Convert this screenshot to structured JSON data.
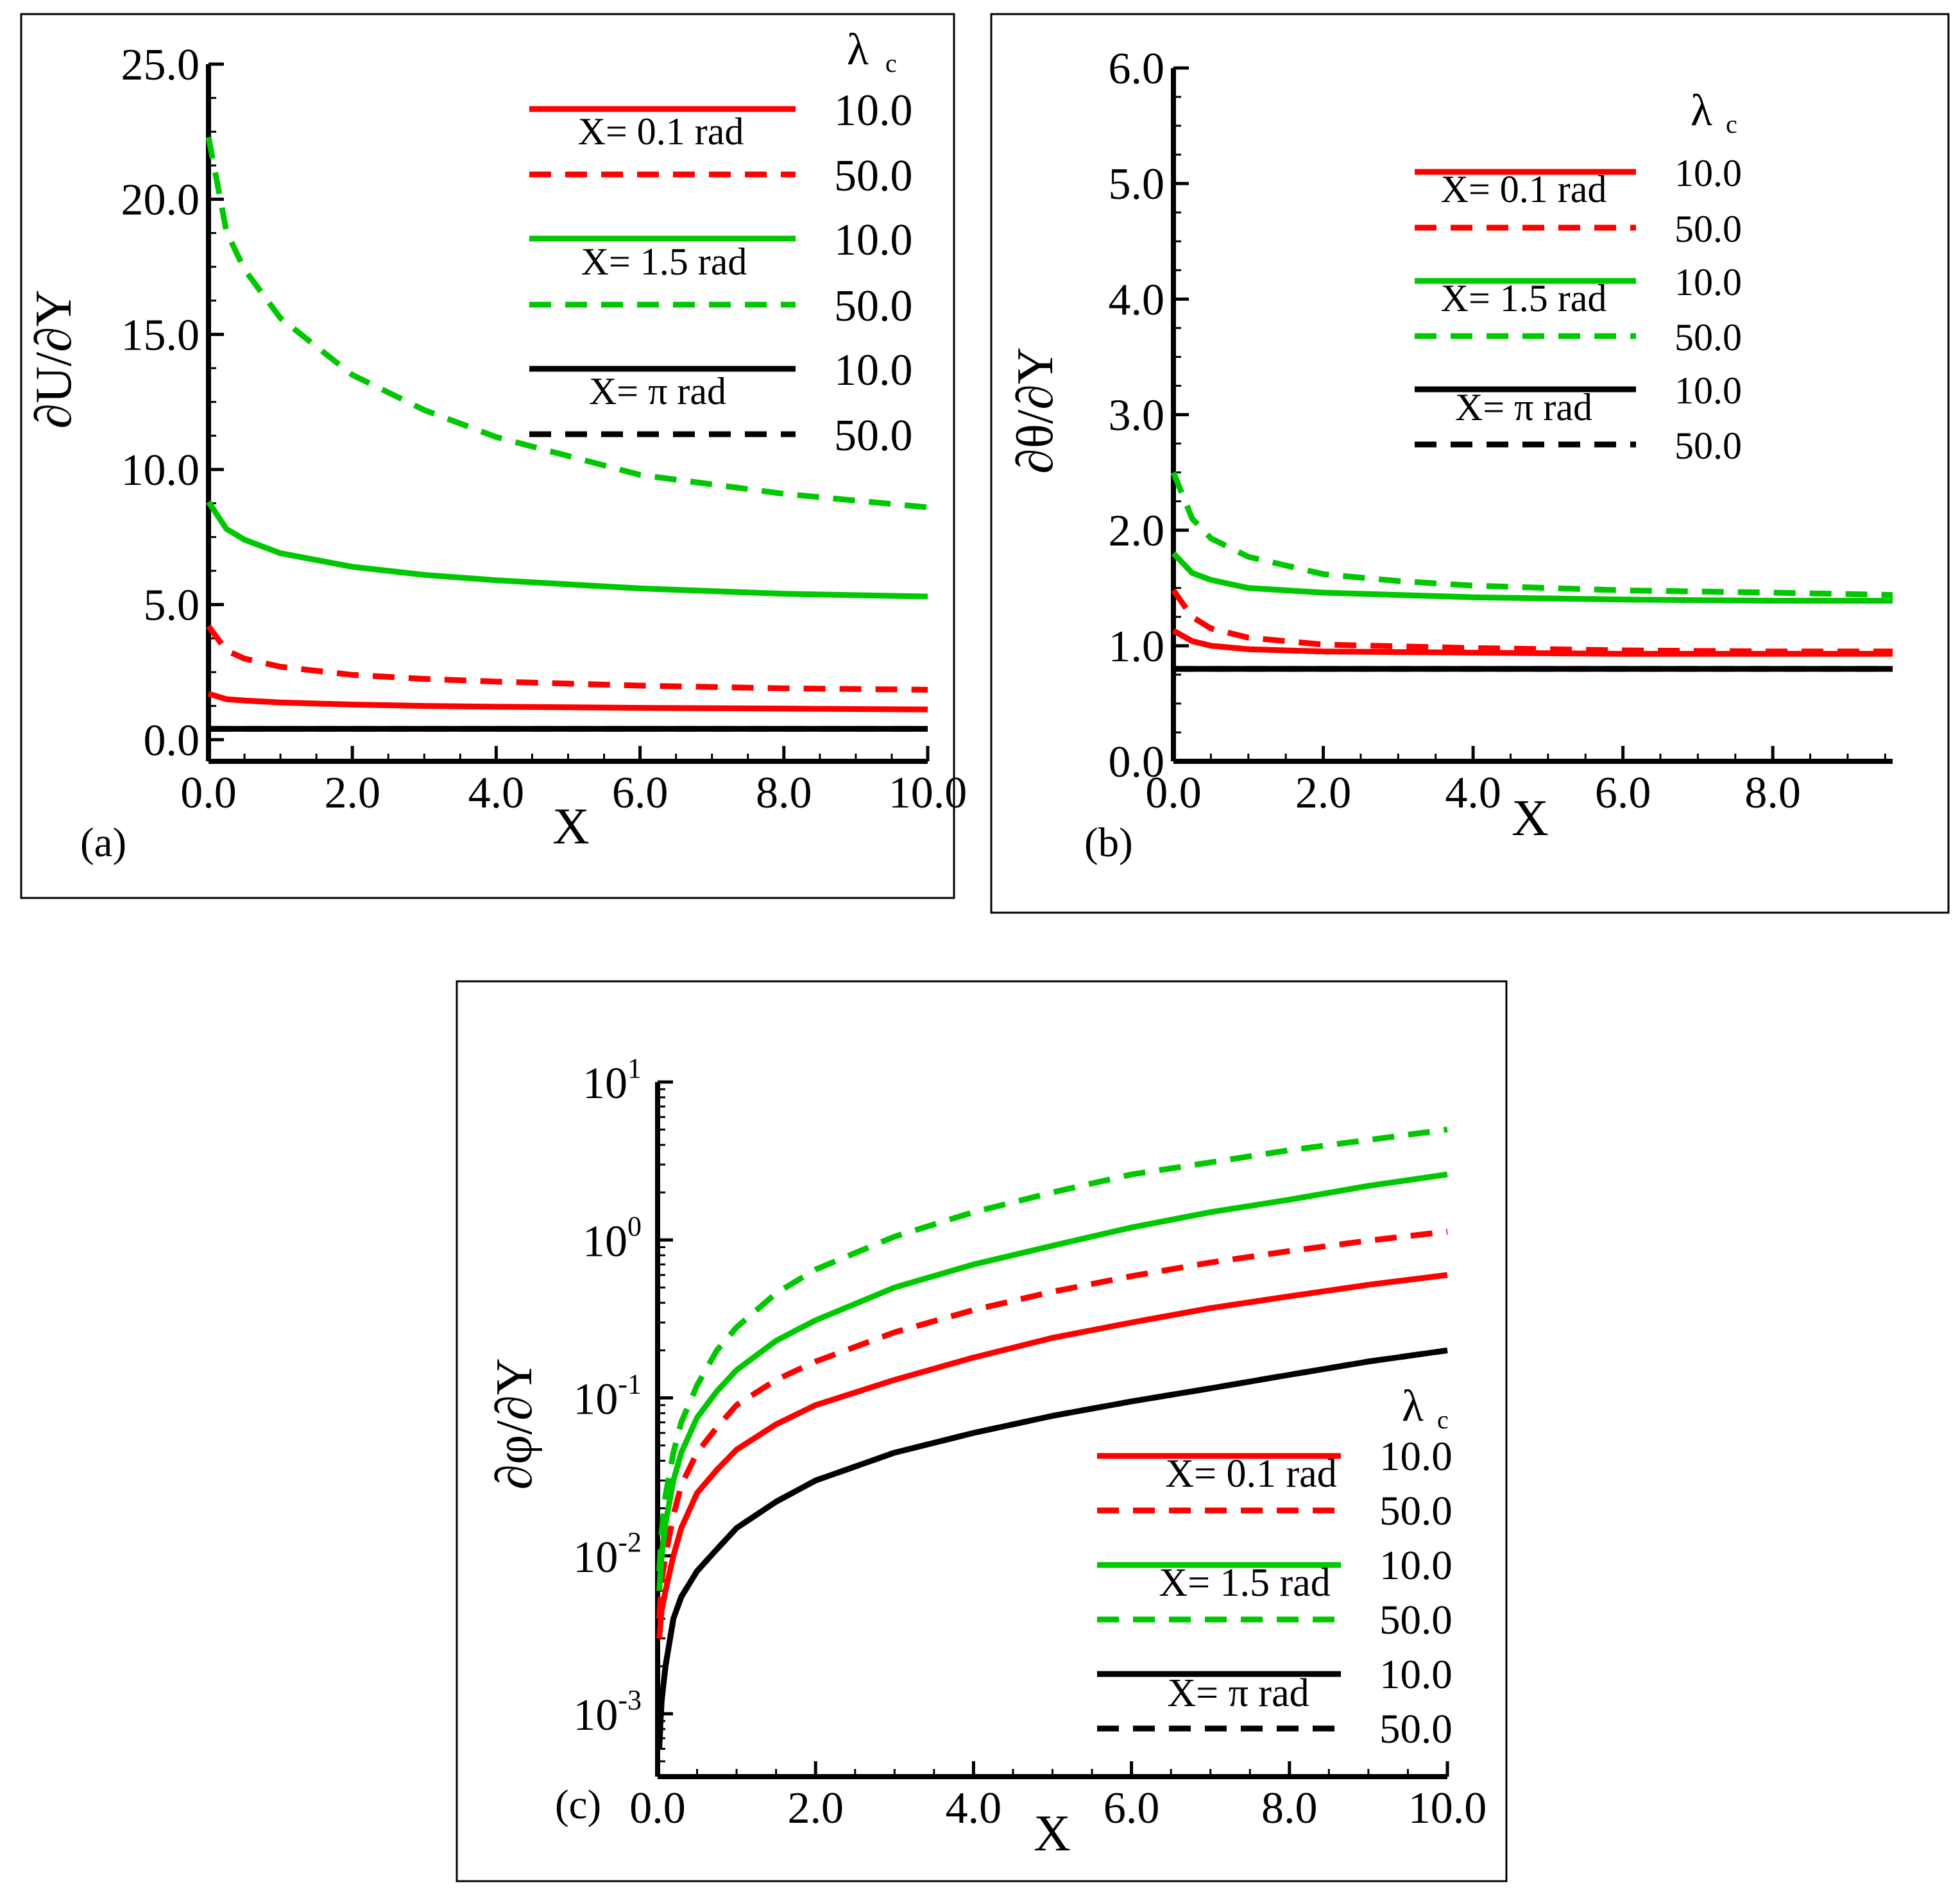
{
  "chart_data": [
    {
      "panel": "(a)",
      "type": "line",
      "xlabel": "X",
      "ylabel": "∂U/∂Y",
      "xlim": [
        0,
        10
      ],
      "ylim": [
        -0.8,
        25
      ],
      "xticks": [
        0,
        2,
        4,
        6,
        8,
        10
      ],
      "xtick_labels": [
        "0.0",
        "2.0",
        "4.0",
        "6.0",
        "8.0",
        "10.0"
      ],
      "yticks": [
        0,
        5,
        10,
        15,
        20,
        25
      ],
      "ytick_labels": [
        "0.0",
        "5.0",
        "10.0",
        "15.0",
        "20.0",
        "25.0"
      ],
      "legend_title": "λ",
      "legend_title_sub": "c",
      "legend_groups": [
        {
          "label": "X= 0.1 rad",
          "color": "#ff0000"
        },
        {
          "label": "X= 1.5 rad",
          "color": "#00c800"
        },
        {
          "label": "X= π rad",
          "color": "#000000"
        }
      ],
      "legend_values": [
        "10.0",
        "50.0"
      ],
      "series": [
        {
          "name": "X= 0.1 rad, λc=10.0",
          "color": "#ff0000",
          "dash": "solid",
          "x": [
            0,
            0.25,
            0.5,
            1,
            2,
            3,
            4,
            6,
            8,
            10
          ],
          "y": [
            1.7,
            1.5,
            1.45,
            1.38,
            1.3,
            1.25,
            1.22,
            1.18,
            1.15,
            1.12
          ]
        },
        {
          "name": "X= 0.1 rad, λc=50.0",
          "color": "#ff0000",
          "dash": "dashed",
          "x": [
            0,
            0.25,
            0.5,
            1,
            2,
            3,
            4,
            6,
            8,
            10
          ],
          "y": [
            4.2,
            3.3,
            3.0,
            2.7,
            2.4,
            2.25,
            2.15,
            2.0,
            1.9,
            1.85
          ]
        },
        {
          "name": "X= 1.5 rad, λc=10.0",
          "color": "#00c800",
          "dash": "solid",
          "x": [
            0,
            0.25,
            0.5,
            1,
            2,
            3,
            4,
            6,
            8,
            10
          ],
          "y": [
            8.8,
            7.8,
            7.4,
            6.9,
            6.4,
            6.1,
            5.9,
            5.6,
            5.4,
            5.3
          ]
        },
        {
          "name": "X= 1.5 rad, λc=50.0",
          "color": "#00c800",
          "dash": "dashed",
          "x": [
            0,
            0.25,
            0.5,
            1,
            2,
            3,
            4,
            5,
            6,
            8,
            10
          ],
          "y": [
            22.3,
            18.8,
            17.4,
            15.6,
            13.5,
            12.2,
            11.2,
            10.5,
            9.8,
            9.1,
            8.6
          ]
        },
        {
          "name": "X= π rad, λc=10.0",
          "color": "#000000",
          "dash": "solid",
          "x": [
            0,
            10
          ],
          "y": [
            0.4,
            0.4
          ]
        },
        {
          "name": "X= π rad, λc=50.0",
          "color": "#000000",
          "dash": "dashed",
          "x": [
            0,
            10
          ],
          "y": [
            0.4,
            0.4
          ]
        }
      ]
    },
    {
      "panel": "(b)",
      "type": "line",
      "xlabel": "X",
      "ylabel": "∂θ/∂Y",
      "xlim": [
        0,
        9.6
      ],
      "ylim": [
        0,
        6
      ],
      "xticks": [
        0,
        2,
        4,
        6,
        8
      ],
      "xtick_labels": [
        "0.0",
        "2.0",
        "4.0",
        "6.0",
        "8.0"
      ],
      "yticks": [
        0,
        1,
        2,
        3,
        4,
        5,
        6
      ],
      "ytick_labels": [
        "0.0",
        "1.0",
        "2.0",
        "3.0",
        "4.0",
        "5.0",
        "6.0"
      ],
      "legend_title": "λ",
      "legend_title_sub": "c",
      "legend_groups": [
        {
          "label": "X= 0.1 rad",
          "color": "#ff0000"
        },
        {
          "label": "X= 1.5 rad",
          "color": "#00c800"
        },
        {
          "label": "X= π rad",
          "color": "#000000"
        }
      ],
      "legend_values": [
        "10.0",
        "50.0"
      ],
      "series": [
        {
          "name": "X= 0.1 rad, λc=10.0",
          "color": "#ff0000",
          "dash": "solid",
          "x": [
            0,
            0.25,
            0.5,
            1,
            2,
            4,
            6,
            8,
            9.6
          ],
          "y": [
            1.13,
            1.04,
            1.0,
            0.97,
            0.95,
            0.94,
            0.93,
            0.93,
            0.93
          ]
        },
        {
          "name": "X= 0.1 rad, λc=50.0",
          "color": "#ff0000",
          "dash": "dashed",
          "x": [
            0,
            0.25,
            0.5,
            1,
            2,
            4,
            6,
            8,
            9.6
          ],
          "y": [
            1.48,
            1.25,
            1.15,
            1.07,
            1.01,
            0.98,
            0.96,
            0.95,
            0.95
          ]
        },
        {
          "name": "X= 1.5 rad, λc=10.0",
          "color": "#00c800",
          "dash": "solid",
          "x": [
            0,
            0.25,
            0.5,
            1,
            2,
            4,
            6,
            8,
            9.6
          ],
          "y": [
            1.8,
            1.63,
            1.57,
            1.5,
            1.46,
            1.42,
            1.4,
            1.39,
            1.39
          ]
        },
        {
          "name": "X= 1.5 rad, λc=50.0",
          "color": "#00c800",
          "dash": "dashed",
          "x": [
            0,
            0.25,
            0.5,
            1,
            2,
            3,
            4,
            6,
            8,
            9.6
          ],
          "y": [
            2.5,
            2.1,
            1.93,
            1.77,
            1.62,
            1.56,
            1.52,
            1.48,
            1.46,
            1.44
          ]
        },
        {
          "name": "X= π rad, λc=10.0",
          "color": "#000000",
          "dash": "solid",
          "x": [
            0,
            9.6
          ],
          "y": [
            0.8,
            0.8
          ]
        },
        {
          "name": "X= π rad, λc=50.0",
          "color": "#000000",
          "dash": "dashed",
          "x": [
            0,
            9.6
          ],
          "y": [
            0.8,
            0.8
          ]
        }
      ]
    },
    {
      "panel": "(c)",
      "type": "line",
      "yscale": "log",
      "xlabel": "X",
      "ylabel": "∂φ/∂Y",
      "xlim": [
        0,
        10
      ],
      "ylim": [
        0.0004,
        10
      ],
      "xticks": [
        0,
        2,
        4,
        6,
        8,
        10
      ],
      "xtick_labels": [
        "0.0",
        "2.0",
        "4.0",
        "6.0",
        "8.0",
        "10.0"
      ],
      "yticks": [
        0.001,
        0.01,
        0.1,
        1,
        10
      ],
      "ytick_bases": [
        "10",
        "10",
        "10",
        "10",
        "10"
      ],
      "ytick_exponents": [
        "-3",
        "-2",
        "-1",
        "0",
        "1"
      ],
      "legend_title": "λ",
      "legend_title_sub": "c",
      "legend_groups": [
        {
          "label": "X= 0.1 rad",
          "color": "#ff0000"
        },
        {
          "label": "X= 1.5 rad",
          "color": "#00c800"
        },
        {
          "label": "X=  π rad",
          "color": "#000000"
        }
      ],
      "legend_values": [
        "10.0",
        "50.0"
      ],
      "series": [
        {
          "name": "X= 0.1 rad, λc=10.0",
          "color": "#ff0000",
          "dash": "solid",
          "x": [
            0.02,
            0.05,
            0.1,
            0.2,
            0.3,
            0.5,
            0.75,
            1,
            1.5,
            2,
            3,
            4,
            5,
            6,
            7,
            8,
            9,
            10
          ],
          "y": [
            0.003,
            0.0045,
            0.006,
            0.01,
            0.015,
            0.025,
            0.035,
            0.047,
            0.068,
            0.09,
            0.13,
            0.18,
            0.24,
            0.3,
            0.37,
            0.44,
            0.52,
            0.6
          ]
        },
        {
          "name": "X= 0.1 rad, λc=50.0",
          "color": "#ff0000",
          "dash": "dashed",
          "x": [
            0.02,
            0.05,
            0.1,
            0.2,
            0.3,
            0.5,
            0.75,
            1,
            1.5,
            2,
            3,
            4,
            5,
            6,
            7,
            8,
            9,
            10
          ],
          "y": [
            0.004,
            0.007,
            0.01,
            0.018,
            0.028,
            0.045,
            0.065,
            0.09,
            0.13,
            0.17,
            0.26,
            0.36,
            0.47,
            0.59,
            0.72,
            0.85,
            0.99,
            1.13
          ]
        },
        {
          "name": "X= 1.5 rad, λc=10.0",
          "color": "#00c800",
          "dash": "solid",
          "x": [
            0.02,
            0.05,
            0.1,
            0.2,
            0.3,
            0.5,
            0.75,
            1,
            1.5,
            2,
            3,
            4,
            5,
            6,
            7,
            8,
            9,
            10
          ],
          "y": [
            0.006,
            0.01,
            0.016,
            0.03,
            0.045,
            0.075,
            0.11,
            0.15,
            0.23,
            0.31,
            0.5,
            0.7,
            0.92,
            1.2,
            1.5,
            1.8,
            2.2,
            2.6
          ]
        },
        {
          "name": "X= 1.5 rad, λc=50.0",
          "color": "#00c800",
          "dash": "dashed",
          "x": [
            0.02,
            0.05,
            0.1,
            0.2,
            0.3,
            0.5,
            0.75,
            1,
            1.5,
            2,
            3,
            4,
            5,
            6,
            7,
            8,
            9,
            10
          ],
          "y": [
            0.008,
            0.014,
            0.024,
            0.045,
            0.07,
            0.12,
            0.2,
            0.28,
            0.46,
            0.65,
            1.05,
            1.5,
            2.0,
            2.6,
            3.1,
            3.7,
            4.3,
            5.0
          ]
        },
        {
          "name": "X= π rad, λc=10.0",
          "color": "#000000",
          "dash": "solid",
          "x": [
            0.02,
            0.05,
            0.1,
            0.2,
            0.3,
            0.5,
            0.75,
            1,
            1.5,
            2,
            3,
            4,
            5,
            6,
            7,
            8,
            9,
            10
          ],
          "y": [
            0.0006,
            0.0012,
            0.002,
            0.004,
            0.0055,
            0.008,
            0.011,
            0.015,
            0.022,
            0.03,
            0.045,
            0.06,
            0.077,
            0.095,
            0.115,
            0.14,
            0.17,
            0.2
          ]
        },
        {
          "name": "X= π rad, λc=50.0",
          "color": "#000000",
          "dash": "dashed",
          "x": [
            0.02,
            0.05,
            0.1,
            0.2,
            0.3,
            0.5,
            0.75,
            1,
            1.5,
            2,
            3,
            4,
            5,
            6,
            7,
            8,
            9,
            10
          ],
          "y": [
            0.0006,
            0.0012,
            0.002,
            0.004,
            0.0055,
            0.008,
            0.011,
            0.015,
            0.022,
            0.03,
            0.045,
            0.06,
            0.077,
            0.095,
            0.115,
            0.14,
            0.17,
            0.2
          ]
        }
      ]
    }
  ]
}
